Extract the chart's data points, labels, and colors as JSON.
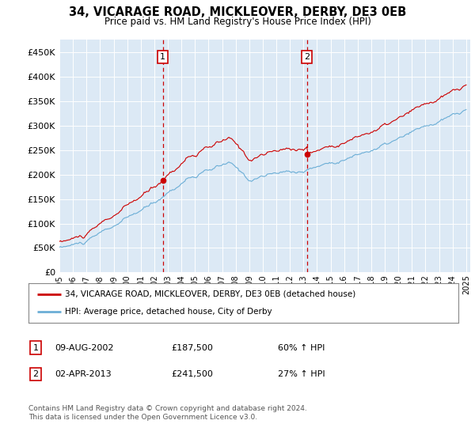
{
  "title": "34, VICARAGE ROAD, MICKLEOVER, DERBY, DE3 0EB",
  "subtitle": "Price paid vs. HM Land Registry's House Price Index (HPI)",
  "plot_bg_color": "#dce9f5",
  "sale1_date": "09-AUG-2002",
  "sale1_price": 187500,
  "sale1_hpi_pct": "60% ↑ HPI",
  "sale2_date": "02-APR-2013",
  "sale2_price": 241500,
  "sale2_hpi_pct": "27% ↑ HPI",
  "legend_line1": "34, VICARAGE ROAD, MICKLEOVER, DERBY, DE3 0EB (detached house)",
  "legend_line2": "HPI: Average price, detached house, City of Derby",
  "footer": "Contains HM Land Registry data © Crown copyright and database right 2024.\nThis data is licensed under the Open Government Licence v3.0.",
  "hpi_color": "#6baed6",
  "price_color": "#cc0000",
  "ylim": [
    0,
    475000
  ],
  "yticks": [
    0,
    50000,
    100000,
    150000,
    200000,
    250000,
    300000,
    350000,
    400000,
    450000
  ],
  "year_start": 1995,
  "year_end": 2025
}
